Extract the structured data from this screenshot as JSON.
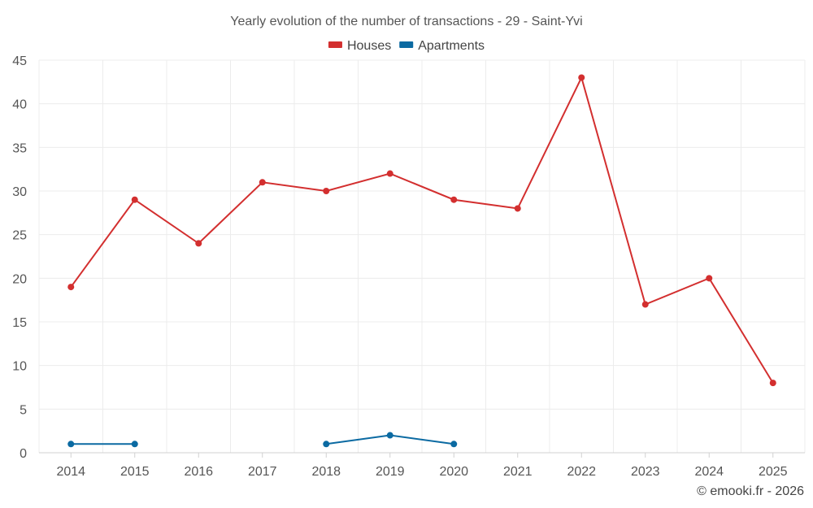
{
  "chart_data": {
    "type": "line",
    "title": "Yearly evolution of the number of transactions - 29 - Saint-Yvi",
    "xlabel": "",
    "ylabel": "",
    "categories": [
      "2014",
      "2015",
      "2016",
      "2017",
      "2018",
      "2019",
      "2020",
      "2021",
      "2022",
      "2023",
      "2024",
      "2025"
    ],
    "ylim": [
      0,
      45
    ],
    "yticks": [
      0,
      5,
      10,
      15,
      20,
      25,
      30,
      35,
      40,
      45
    ],
    "grid": true,
    "legend_position": "top-center",
    "series": [
      {
        "name": "Houses",
        "color": "#d32f2f",
        "values": [
          19,
          29,
          24,
          31,
          30,
          32,
          29,
          28,
          43,
          17,
          20,
          8
        ]
      },
      {
        "name": "Apartments",
        "color": "#0b6aa2",
        "values": [
          1,
          1,
          null,
          null,
          1,
          2,
          1,
          null,
          null,
          null,
          null,
          null
        ]
      }
    ]
  },
  "credit": "© emooki.fr - 2026"
}
